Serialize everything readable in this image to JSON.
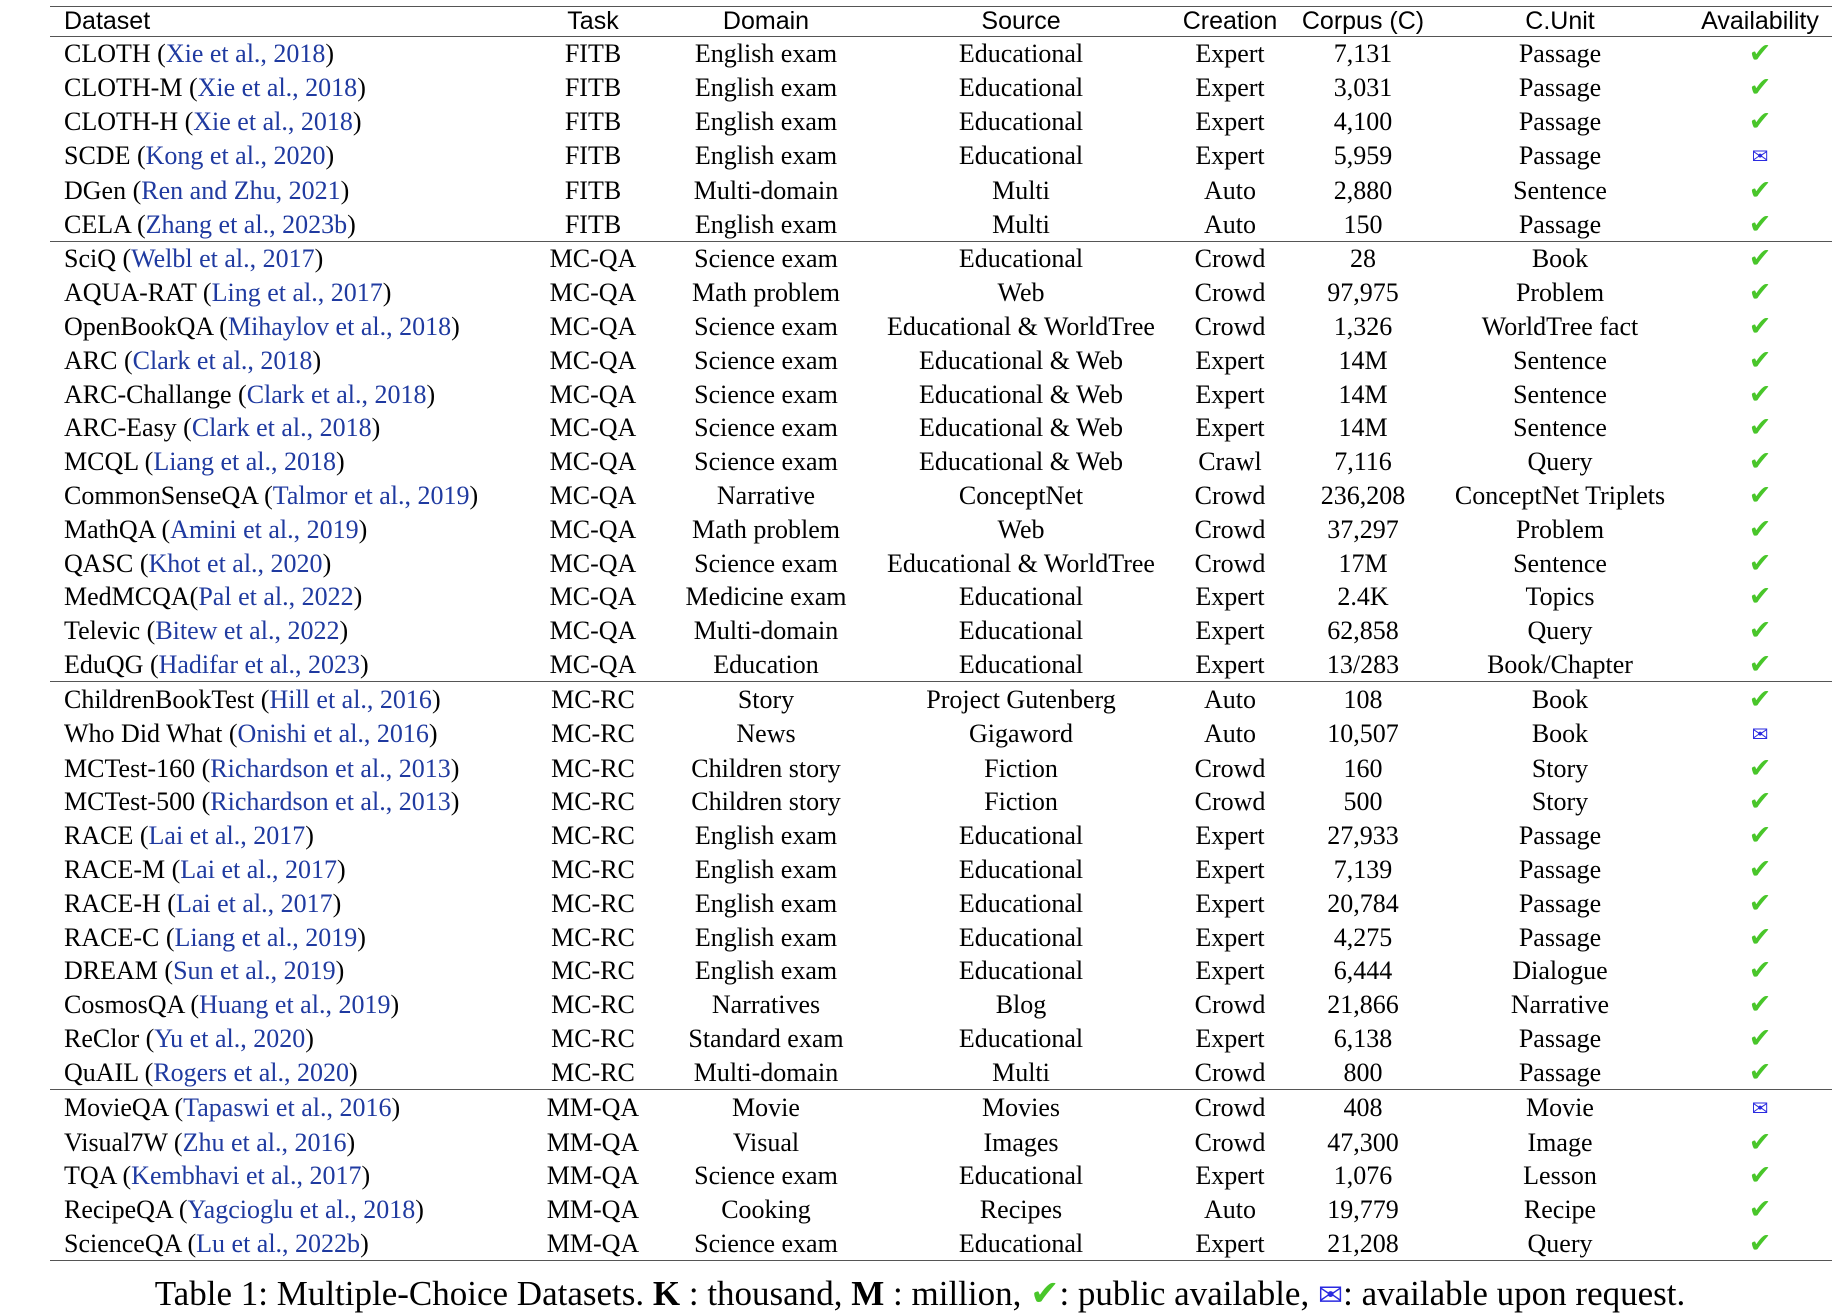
{
  "table": {
    "headers": [
      "Dataset",
      "Task",
      "Domain",
      "Source",
      "Creation",
      "Corpus (C)",
      "C.Unit",
      "Availability"
    ],
    "groups": [
      {
        "rows": [
          {
            "dataset": "CLOTH",
            "cite": "Xie et al., 2018",
            "task": "FITB",
            "domain": "English exam",
            "source": "Educational",
            "creation": "Expert",
            "corpus": "7,131",
            "unit": "Passage",
            "availability": "check-icon"
          },
          {
            "dataset": "CLOTH-M",
            "cite": "Xie et al., 2018",
            "task": "FITB",
            "domain": "English exam",
            "source": "Educational",
            "creation": "Expert",
            "corpus": "3,031",
            "unit": "Passage",
            "availability": "check-icon"
          },
          {
            "dataset": "CLOTH-H",
            "cite": "Xie et al., 2018",
            "task": "FITB",
            "domain": "English exam",
            "source": "Educational",
            "creation": "Expert",
            "corpus": "4,100",
            "unit": "Passage",
            "availability": "check-icon"
          },
          {
            "dataset": "SCDE",
            "cite": "Kong et al., 2020",
            "task": "FITB",
            "domain": "English exam",
            "source": "Educational",
            "creation": "Expert",
            "corpus": "5,959",
            "unit": "Passage",
            "availability": "envelope-icon"
          },
          {
            "dataset": "DGen",
            "cite": "Ren and Zhu, 2021",
            "task": "FITB",
            "domain": "Multi-domain",
            "source": "Multi",
            "creation": "Auto",
            "corpus": "2,880",
            "unit": "Sentence",
            "availability": "check-icon"
          },
          {
            "dataset": "CELA",
            "cite": "Zhang et al., 2023b",
            "task": "FITB",
            "domain": "English exam",
            "source": "Multi",
            "creation": "Auto",
            "corpus": "150",
            "unit": "Passage",
            "availability": "check-icon"
          }
        ]
      },
      {
        "rows": [
          {
            "dataset": "SciQ",
            "cite": "Welbl et al., 2017",
            "task": "MC-QA",
            "domain": "Science exam",
            "source": "Educational",
            "creation": "Crowd",
            "corpus": "28",
            "unit": "Book",
            "availability": "check-icon"
          },
          {
            "dataset": "AQUA-RAT",
            "cite": "Ling et al., 2017",
            "task": "MC-QA",
            "domain": "Math problem",
            "source": "Web",
            "creation": "Crowd",
            "corpus": "97,975",
            "unit": "Problem",
            "availability": "check-icon"
          },
          {
            "dataset": "OpenBookQA",
            "cite": "Mihaylov et al., 2018",
            "task": "MC-QA",
            "domain": "Science exam",
            "source": "Educational & WorldTree",
            "creation": "Crowd",
            "corpus": "1,326",
            "unit": "WorldTree fact",
            "availability": "check-icon"
          },
          {
            "dataset": "ARC",
            "cite": "Clark et al., 2018",
            "task": "MC-QA",
            "domain": "Science exam",
            "source": "Educational & Web",
            "creation": "Expert",
            "corpus": "14M",
            "unit": "Sentence",
            "availability": "check-icon"
          },
          {
            "dataset": "ARC-Challange",
            "cite": "Clark et al., 2018",
            "task": "MC-QA",
            "domain": "Science exam",
            "source": "Educational & Web",
            "creation": "Expert",
            "corpus": "14M",
            "unit": "Sentence",
            "availability": "check-icon"
          },
          {
            "dataset": "ARC-Easy",
            "cite": "Clark et al., 2018",
            "task": "MC-QA",
            "domain": "Science exam",
            "source": "Educational & Web",
            "creation": "Expert",
            "corpus": "14M",
            "unit": "Sentence",
            "availability": "check-icon"
          },
          {
            "dataset": "MCQL",
            "cite": "Liang et al., 2018",
            "task": "MC-QA",
            "domain": "Science exam",
            "source": "Educational & Web",
            "creation": "Crawl",
            "corpus": "7,116",
            "unit": "Query",
            "availability": "check-icon"
          },
          {
            "dataset": "CommonSenseQA",
            "cite": "Talmor et al., 2019",
            "task": "MC-QA",
            "domain": "Narrative",
            "source": "ConceptNet",
            "creation": "Crowd",
            "corpus": "236,208",
            "unit": "ConceptNet Triplets",
            "availability": "check-icon"
          },
          {
            "dataset": "MathQA",
            "cite": "Amini et al., 2019",
            "task": "MC-QA",
            "domain": "Math problem",
            "source": "Web",
            "creation": "Crowd",
            "corpus": "37,297",
            "unit": "Problem",
            "availability": "check-icon"
          },
          {
            "dataset": "QASC",
            "cite": "Khot et al., 2020",
            "task": "MC-QA",
            "domain": "Science exam",
            "source": "Educational & WorldTree",
            "creation": "Crowd",
            "corpus": "17M",
            "unit": "Sentence",
            "availability": "check-icon"
          },
          {
            "dataset": "MedMCQA",
            "cite": "Pal et al., 2022",
            "nospace": true,
            "task": "MC-QA",
            "domain": "Medicine exam",
            "source": "Educational",
            "creation": "Expert",
            "corpus": "2.4K",
            "unit": "Topics",
            "availability": "check-icon"
          },
          {
            "dataset": "Televic",
            "cite": "Bitew et al., 2022",
            "task": "MC-QA",
            "domain": "Multi-domain",
            "source": "Educational",
            "creation": "Expert",
            "corpus": "62,858",
            "unit": "Query",
            "availability": "check-icon"
          },
          {
            "dataset": "EduQG",
            "cite": "Hadifar et al., 2023",
            "task": "MC-QA",
            "domain": "Education",
            "source": "Educational",
            "creation": "Expert",
            "corpus": "13/283",
            "unit": "Book/Chapter",
            "availability": "check-icon"
          }
        ]
      },
      {
        "rows": [
          {
            "dataset": "ChildrenBookTest",
            "cite": "Hill et al., 2016",
            "task": "MC-RC",
            "domain": "Story",
            "source": "Project Gutenberg",
            "creation": "Auto",
            "corpus": "108",
            "unit": "Book",
            "availability": "check-icon"
          },
          {
            "dataset": "Who Did What",
            "cite": "Onishi et al., 2016",
            "task": "MC-RC",
            "domain": "News",
            "source": "Gigaword",
            "creation": "Auto",
            "corpus": "10,507",
            "unit": "Book",
            "availability": "envelope-icon"
          },
          {
            "dataset": "MCTest-160",
            "cite": "Richardson et al., 2013",
            "task": "MC-RC",
            "domain": "Children story",
            "source": "Fiction",
            "creation": "Crowd",
            "corpus": "160",
            "unit": "Story",
            "availability": "check-icon"
          },
          {
            "dataset": "MCTest-500",
            "cite": "Richardson et al., 2013",
            "task": "MC-RC",
            "domain": "Children story",
            "source": "Fiction",
            "creation": "Crowd",
            "corpus": "500",
            "unit": "Story",
            "availability": "check-icon"
          },
          {
            "dataset": "RACE",
            "cite": "Lai et al., 2017",
            "task": "MC-RC",
            "domain": "English exam",
            "source": "Educational",
            "creation": "Expert",
            "corpus": "27,933",
            "unit": "Passage",
            "availability": "check-icon"
          },
          {
            "dataset": "RACE-M",
            "cite": "Lai et al., 2017",
            "task": "MC-RC",
            "domain": "English exam",
            "source": "Educational",
            "creation": "Expert",
            "corpus": "7,139",
            "unit": "Passage",
            "availability": "check-icon"
          },
          {
            "dataset": "RACE-H",
            "cite": "Lai et al., 2017",
            "task": "MC-RC",
            "domain": "English exam",
            "source": "Educational",
            "creation": "Expert",
            "corpus": "20,784",
            "unit": "Passage",
            "availability": "check-icon"
          },
          {
            "dataset": "RACE-C",
            "cite": "Liang et al., 2019",
            "task": "MC-RC",
            "domain": "English exam",
            "source": "Educational",
            "creation": "Expert",
            "corpus": "4,275",
            "unit": "Passage",
            "availability": "check-icon"
          },
          {
            "dataset": "DREAM",
            "cite": "Sun et al., 2019",
            "task": "MC-RC",
            "domain": "English exam",
            "source": "Educational",
            "creation": "Expert",
            "corpus": "6,444",
            "unit": "Dialogue",
            "availability": "check-icon"
          },
          {
            "dataset": "CosmosQA",
            "cite": "Huang et al., 2019",
            "task": "MC-RC",
            "domain": "Narratives",
            "source": "Blog",
            "creation": "Crowd",
            "corpus": "21,866",
            "unit": "Narrative",
            "availability": "check-icon"
          },
          {
            "dataset": "ReClor",
            "cite": "Yu et al., 2020",
            "task": "MC-RC",
            "domain": "Standard exam",
            "source": "Educational",
            "creation": "Expert",
            "corpus": "6,138",
            "unit": "Passage",
            "availability": "check-icon"
          },
          {
            "dataset": "QuAIL",
            "cite": "Rogers et al., 2020",
            "task": "MC-RC",
            "domain": "Multi-domain",
            "source": "Multi",
            "creation": "Crowd",
            "corpus": "800",
            "unit": "Passage",
            "availability": "check-icon"
          }
        ]
      },
      {
        "rows": [
          {
            "dataset": "MovieQA",
            "cite": "Tapaswi et al., 2016",
            "task": "MM-QA",
            "domain": "Movie",
            "source": "Movies",
            "creation": "Crowd",
            "corpus": "408",
            "unit": "Movie",
            "availability": "envelope-icon"
          },
          {
            "dataset": "Visual7W",
            "cite": "Zhu et al., 2016",
            "task": "MM-QA",
            "domain": "Visual",
            "source": "Images",
            "creation": "Crowd",
            "corpus": "47,300",
            "unit": "Image",
            "availability": "check-icon"
          },
          {
            "dataset": "TQA",
            "cite": "Kembhavi et al., 2017",
            "task": "MM-QA",
            "domain": "Science exam",
            "source": "Educational",
            "creation": "Expert",
            "corpus": "1,076",
            "unit": "Lesson",
            "availability": "check-icon"
          },
          {
            "dataset": "RecipeQA",
            "cite": "Yagcioglu et al., 2018",
            "task": "MM-QA",
            "domain": "Cooking",
            "source": "Recipes",
            "creation": "Auto",
            "corpus": "19,779",
            "unit": "Recipe",
            "availability": "check-icon"
          },
          {
            "dataset": "ScienceQA",
            "cite": "Lu et al., 2022b",
            "task": "MM-QA",
            "domain": "Science exam",
            "source": "Educational",
            "creation": "Expert",
            "corpus": "21,208",
            "unit": "Query",
            "availability": "check-icon"
          }
        ]
      }
    ]
  },
  "glyphs": {
    "check": "✔",
    "envelope": "✉"
  },
  "colors": {
    "citation": "#1f3aa0",
    "check": "#49c62a",
    "envelope": "#2a2ae0"
  },
  "caption": {
    "prefix": "Table 1: Multiple-Choice Datasets.",
    "k_symbol": "K",
    "k_text": ": thousand,",
    "m_symbol": "M",
    "m_text": ": million,",
    "public_text": ": public available,",
    "request_text": ": available upon request."
  }
}
